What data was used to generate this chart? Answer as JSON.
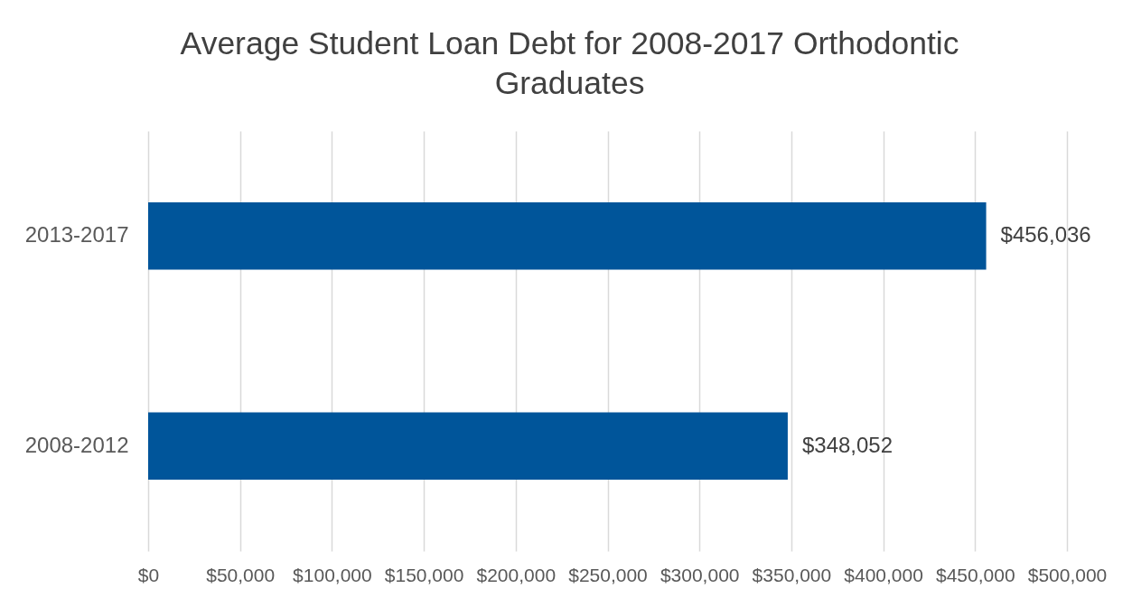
{
  "chart_data": {
    "type": "bar",
    "orientation": "horizontal",
    "title": "Average Student Loan Debt for 2008-2017 Orthodontic Graduates",
    "categories": [
      "2013-2017",
      "2008-2012"
    ],
    "values": [
      456036,
      348052
    ],
    "color": "#00559a",
    "value_labels": [
      "$456,036",
      "$348,052"
    ],
    "xlim": [
      0,
      500000
    ],
    "xticks": [
      {
        "value": 0,
        "label": "$0"
      },
      {
        "value": 50000,
        "label": "$50,000"
      },
      {
        "value": 100000,
        "label": "$100,000"
      },
      {
        "value": 150000,
        "label": "$150,000"
      },
      {
        "value": 200000,
        "label": "$200,000"
      },
      {
        "value": 250000,
        "label": "$250,000"
      },
      {
        "value": 300000,
        "label": "$300,000"
      },
      {
        "value": 350000,
        "label": "$350,000"
      },
      {
        "value": 400000,
        "label": "$400,000"
      },
      {
        "value": 450000,
        "label": "$450,000"
      },
      {
        "value": 500000,
        "label": "$500,000"
      }
    ],
    "grid": "x"
  }
}
